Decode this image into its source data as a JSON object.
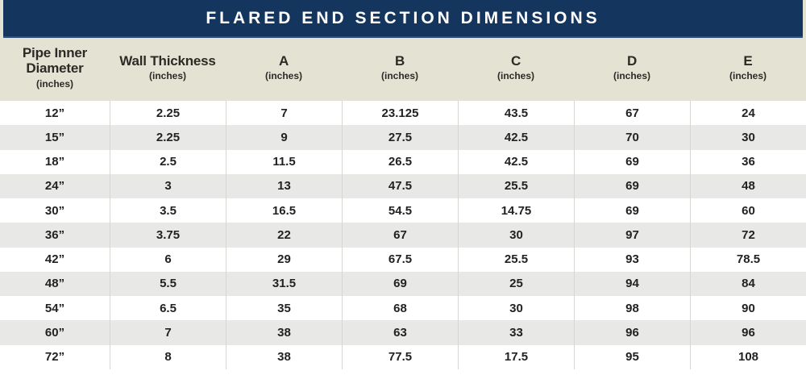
{
  "colors": {
    "navy": "#14355e",
    "beige_header": "#e4e2d2",
    "row_alternate": "#e8e8e6",
    "row_white": "#ffffff",
    "column_divider": "#d6d6d2",
    "header_text": "#2b2a26",
    "cell_text": "#222222",
    "title_text": "#ffffff"
  },
  "chart_data": {
    "type": "table",
    "title": "FLARED END SECTION DIMENSIONS",
    "columns": [
      {
        "key": "pipe-inner-diameter",
        "label": "Pipe Inner Diameter",
        "sub": "(inches)"
      },
      {
        "key": "wall-thickness",
        "label": "Wall Thickness",
        "sub": "(inches)"
      },
      {
        "key": "a",
        "label": "A",
        "sub": "(inches)"
      },
      {
        "key": "b",
        "label": "B",
        "sub": "(inches)"
      },
      {
        "key": "c",
        "label": "C",
        "sub": "(inches)"
      },
      {
        "key": "d",
        "label": "D",
        "sub": "(inches)"
      },
      {
        "key": "e",
        "label": "E",
        "sub": "(inches)"
      }
    ],
    "rows": [
      [
        "12”",
        "2.25",
        "7",
        "23.125",
        "43.5",
        "67",
        "24"
      ],
      [
        "15”",
        "2.25",
        "9",
        "27.5",
        "42.5",
        "70",
        "30"
      ],
      [
        "18”",
        "2.5",
        "11.5",
        "26.5",
        "42.5",
        "69",
        "36"
      ],
      [
        "24”",
        "3",
        "13",
        "47.5",
        "25.5",
        "69",
        "48"
      ],
      [
        "30”",
        "3.5",
        "16.5",
        "54.5",
        "14.75",
        "69",
        "60"
      ],
      [
        "36”",
        "3.75",
        "22",
        "67",
        "30",
        "97",
        "72"
      ],
      [
        "42”",
        "6",
        "29",
        "67.5",
        "25.5",
        "93",
        "78.5"
      ],
      [
        "48”",
        "5.5",
        "31.5",
        "69",
        "25",
        "94",
        "84"
      ],
      [
        "54”",
        "6.5",
        "35",
        "68",
        "30",
        "98",
        "90"
      ],
      [
        "60”",
        "7",
        "38",
        "63",
        "33",
        "96",
        "96"
      ],
      [
        "72”",
        "8",
        "38",
        "77.5",
        "17.5",
        "95",
        "108"
      ]
    ],
    "layout_hints": {
      "striping": "odd rows white, even rows light gray",
      "column_dividers": true,
      "title_position": "top navy bar, centered"
    }
  }
}
